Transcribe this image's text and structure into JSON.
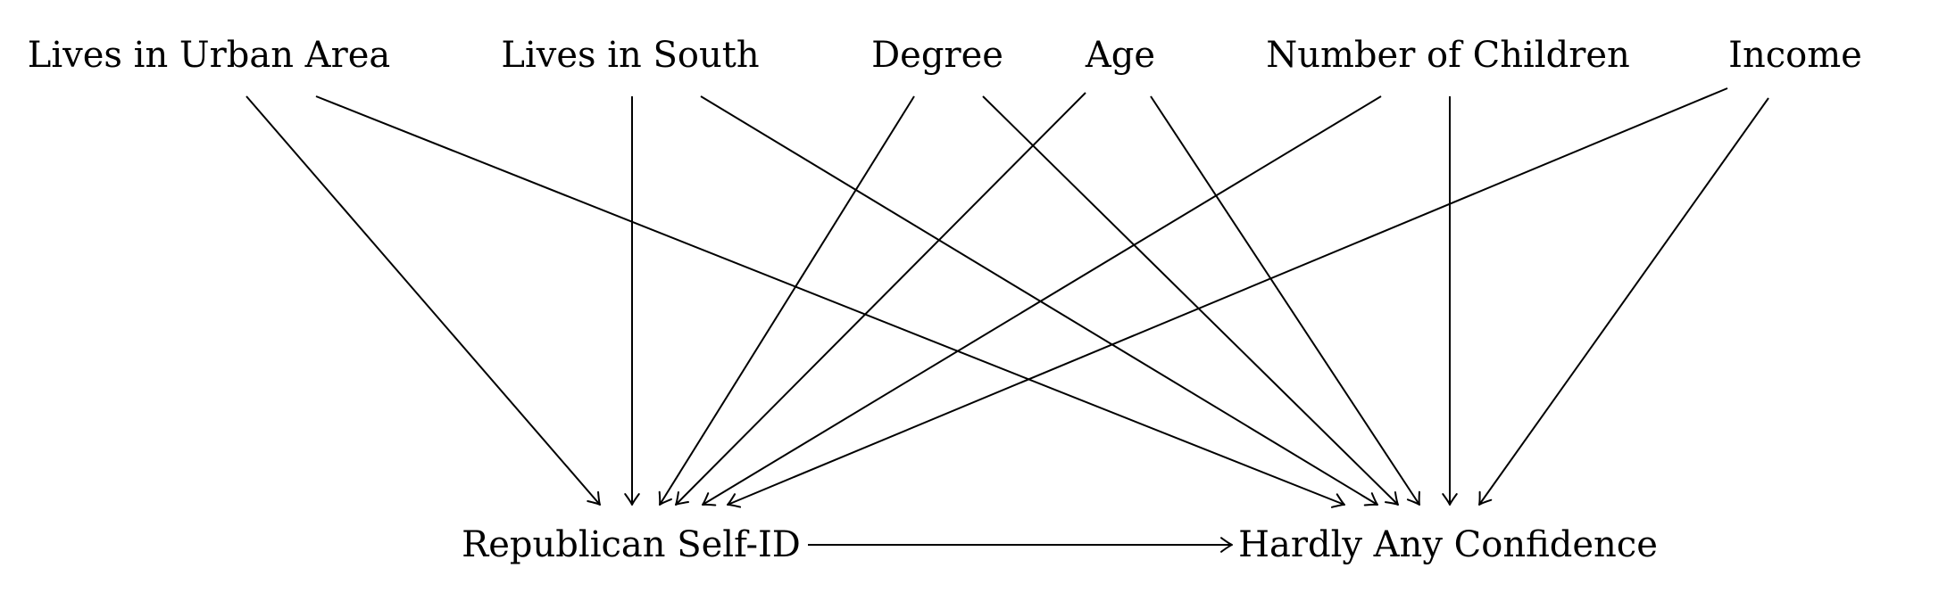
{
  "diagram": {
    "type": "directed-acyclic-graph",
    "nodes": [
      {
        "id": "urban",
        "label": "Lives in Urban Area"
      },
      {
        "id": "south",
        "label": "Lives in South"
      },
      {
        "id": "degree",
        "label": "Degree"
      },
      {
        "id": "age",
        "label": "Age"
      },
      {
        "id": "children",
        "label": "Number of Children"
      },
      {
        "id": "income",
        "label": "Income"
      },
      {
        "id": "rep",
        "label": "Republican Self-ID"
      },
      {
        "id": "conf",
        "label": "Hardly Any Confidence"
      }
    ],
    "edges": [
      {
        "from": "urban",
        "to": "rep"
      },
      {
        "from": "south",
        "to": "rep"
      },
      {
        "from": "degree",
        "to": "rep"
      },
      {
        "from": "age",
        "to": "rep"
      },
      {
        "from": "children",
        "to": "rep"
      },
      {
        "from": "income",
        "to": "rep"
      },
      {
        "from": "urban",
        "to": "conf"
      },
      {
        "from": "south",
        "to": "conf"
      },
      {
        "from": "degree",
        "to": "conf"
      },
      {
        "from": "age",
        "to": "conf"
      },
      {
        "from": "children",
        "to": "conf"
      },
      {
        "from": "income",
        "to": "conf"
      },
      {
        "from": "rep",
        "to": "conf"
      }
    ],
    "colors": {
      "ink": "#000000",
      "background": "#ffffff"
    }
  }
}
